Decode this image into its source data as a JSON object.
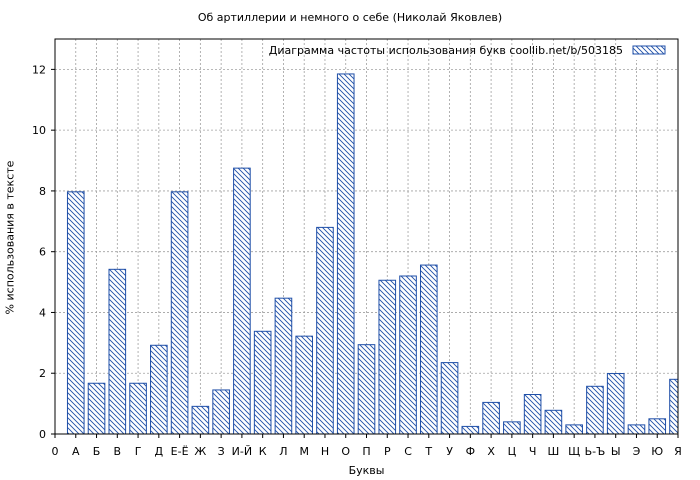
{
  "chart_data": {
    "type": "bar",
    "title": "Об артиллерии и немного о себе (Николай Яковлев)",
    "legend": "Диаграмма частоты использования букв  coollib.net/b/503185",
    "legend_position": "top-right",
    "xlabel": "Буквы",
    "ylabel": "% использования в тексте",
    "x_ticks": [
      "0",
      "А",
      "Б",
      "В",
      "Г",
      "Д",
      "Е-Ё",
      "Ж",
      "З",
      "И-Й",
      "К",
      "Л",
      "М",
      "Н",
      "О",
      "П",
      "Р",
      "С",
      "Т",
      "У",
      "Ф",
      "Х",
      "Ц",
      "Ч",
      "Ш",
      "Щ",
      "Ь-Ъ",
      "Ы",
      "Э",
      "Ю",
      "Я"
    ],
    "categories": [
      "А",
      "Б",
      "В",
      "Г",
      "Д",
      "Е-Ё",
      "Ж",
      "З",
      "И-Й",
      "К",
      "Л",
      "М",
      "Н",
      "О",
      "П",
      "Р",
      "С",
      "Т",
      "У",
      "Ф",
      "Х",
      "Ц",
      "Ч",
      "Ш",
      "Щ",
      "Ь-Ъ",
      "Ы",
      "Э",
      "Ю",
      "Я"
    ],
    "values": [
      7.97,
      1.67,
      5.42,
      1.67,
      2.92,
      7.97,
      0.91,
      1.45,
      8.75,
      3.38,
      4.47,
      3.22,
      6.8,
      11.85,
      2.94,
      5.06,
      5.2,
      5.56,
      2.35,
      0.25,
      1.04,
      0.4,
      1.3,
      0.78,
      0.3,
      1.57,
      1.99,
      0.3,
      0.5,
      1.8
    ],
    "ylim": [
      0,
      13
    ],
    "y_ticks": [
      0,
      2,
      4,
      6,
      8,
      10,
      12
    ],
    "grid": true,
    "colors": {
      "bar_stroke": "#1f4fa8",
      "hatch": "#1f4fa8",
      "grid": "#a0a0a0",
      "axis": "#000000"
    }
  }
}
